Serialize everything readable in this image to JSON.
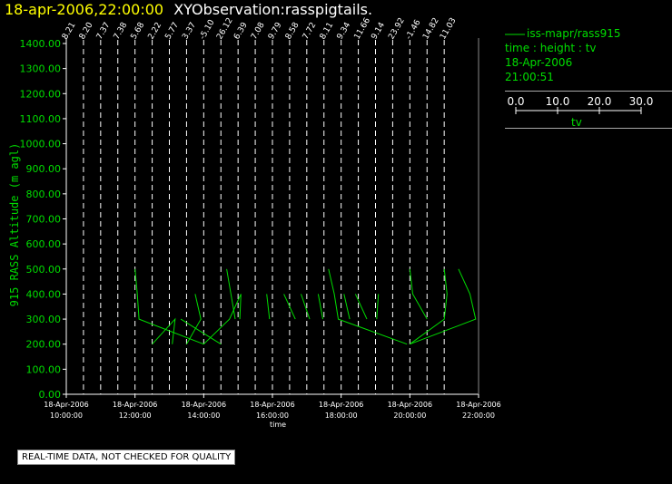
{
  "header": {
    "date_time": "18-apr-2006,22:00:00",
    "title": "XYObservation:rasspigtails."
  },
  "legend": {
    "line1": "iss-mapr/rass915",
    "line2": "time : height : tv",
    "line3": "18-Apr-2006",
    "line4": "21:00:51"
  },
  "color_scale": {
    "ticks": [
      "0.0",
      "10.0",
      "20.0",
      "30.0"
    ],
    "label": "tv"
  },
  "notice": "REAL-TIME DATA, NOT CHECKED FOR QUALITY",
  "colors": {
    "data": "#00dd00",
    "axis": "#ffffff",
    "date": "#ffff00",
    "background": "#000000"
  },
  "chart_data": {
    "type": "line",
    "ylabel": "915 RASS Altitude (m agl)",
    "xlabel": "time",
    "ylim": [
      0,
      1400
    ],
    "xlim": [
      "10:00",
      "22:00"
    ],
    "y_ticks": [
      "0.00",
      "100.00",
      "200.00",
      "300.00",
      "400.00",
      "500.00",
      "600.00",
      "700.00",
      "800.00",
      "900.00",
      "1000.00",
      "1100.00",
      "1200.00",
      "1300.00",
      "1400.00"
    ],
    "x_ticks": [
      {
        "date": "18-Apr-2006",
        "time": "10:00:00"
      },
      {
        "date": "18-Apr-2006",
        "time": "12:00:00"
      },
      {
        "date": "18-Apr-2006",
        "time": "14:00:00"
      },
      {
        "date": "18-Apr-2006",
        "time": "16:00:00"
      },
      {
        "date": "18-Apr-2006",
        "time": "18:00:00"
      },
      {
        "date": "18-Apr-2006",
        "time": "20:00:00"
      },
      {
        "date": "18-Apr-2006",
        "time": "22:00:00"
      }
    ],
    "profile_labels": [
      {
        "time": "10:00",
        "label": "8.21"
      },
      {
        "time": "10:30",
        "label": "8.20"
      },
      {
        "time": "11:00",
        "label": "7.37"
      },
      {
        "time": "11:30",
        "label": "7.38"
      },
      {
        "time": "12:00",
        "label": "5.68"
      },
      {
        "time": "12:30",
        "label": "2.22"
      },
      {
        "time": "13:00",
        "label": "5.77"
      },
      {
        "time": "13:30",
        "label": "3.37"
      },
      {
        "time": "14:00",
        "label": "-5.10"
      },
      {
        "time": "14:30",
        "label": "26.12"
      },
      {
        "time": "15:00",
        "label": "6.39"
      },
      {
        "time": "15:30",
        "label": "7.08"
      },
      {
        "time": "16:00",
        "label": "9.79"
      },
      {
        "time": "16:30",
        "label": "8.58"
      },
      {
        "time": "17:00",
        "label": "7.72"
      },
      {
        "time": "17:30",
        "label": "8.11"
      },
      {
        "time": "18:00",
        "label": "9.34"
      },
      {
        "time": "18:30",
        "label": "11.66"
      },
      {
        "time": "19:00",
        "label": "9.14"
      },
      {
        "time": "19:30",
        "label": "23.92"
      },
      {
        "time": "20:00",
        "label": "-1.46"
      },
      {
        "time": "20:30",
        "label": "14.82"
      },
      {
        "time": "21:00",
        "label": "11.03"
      }
    ],
    "series": [
      {
        "values": [
          [
            "12:00",
            500
          ],
          [
            "12:04",
            400
          ],
          [
            "12:07",
            300
          ],
          [
            "14:00",
            200
          ],
          [
            "14:45",
            300
          ],
          [
            "15:05",
            400
          ],
          [
            "15:03",
            300
          ]
        ]
      },
      {
        "values": [
          [
            "12:30",
            200
          ],
          [
            "13:10",
            300
          ],
          [
            "13:05",
            200
          ]
        ]
      },
      {
        "values": [
          [
            "13:30",
            200
          ],
          [
            "13:55",
            300
          ],
          [
            "13:45",
            400
          ]
        ]
      },
      {
        "values": [
          [
            "13:20",
            300
          ],
          [
            "14:30",
            200
          ]
        ]
      },
      {
        "values": [
          [
            "14:40",
            500
          ],
          [
            "14:55",
            300
          ]
        ]
      },
      {
        "values": [
          [
            "15:55",
            300
          ],
          [
            "15:50",
            400
          ]
        ]
      },
      {
        "values": [
          [
            "16:20",
            400
          ],
          [
            "16:40",
            300
          ]
        ]
      },
      {
        "values": [
          [
            "16:50",
            400
          ],
          [
            "17:05",
            300
          ]
        ]
      },
      {
        "values": [
          [
            "17:20",
            400
          ],
          [
            "17:28",
            300
          ]
        ]
      },
      {
        "values": [
          [
            "17:38",
            500
          ],
          [
            "17:48",
            400
          ],
          [
            "17:55",
            300
          ],
          [
            "19:55",
            200
          ]
        ]
      },
      {
        "values": [
          [
            "18:05",
            400
          ],
          [
            "18:15",
            300
          ]
        ]
      },
      {
        "values": [
          [
            "18:25",
            400
          ],
          [
            "18:45",
            300
          ]
        ]
      },
      {
        "values": [
          [
            "19:05",
            400
          ],
          [
            "19:02",
            300
          ]
        ]
      },
      {
        "values": [
          [
            "20:00",
            500
          ],
          [
            "20:05",
            400
          ],
          [
            "20:30",
            300
          ]
        ]
      },
      {
        "values": [
          [
            "20:00",
            200
          ],
          [
            "21:00",
            300
          ],
          [
            "21:05",
            400
          ],
          [
            "21:00",
            500
          ]
        ]
      },
      {
        "values": [
          [
            "21:25",
            500
          ],
          [
            "21:45",
            400
          ],
          [
            "21:55",
            300
          ],
          [
            "20:00",
            200
          ]
        ]
      }
    ]
  }
}
